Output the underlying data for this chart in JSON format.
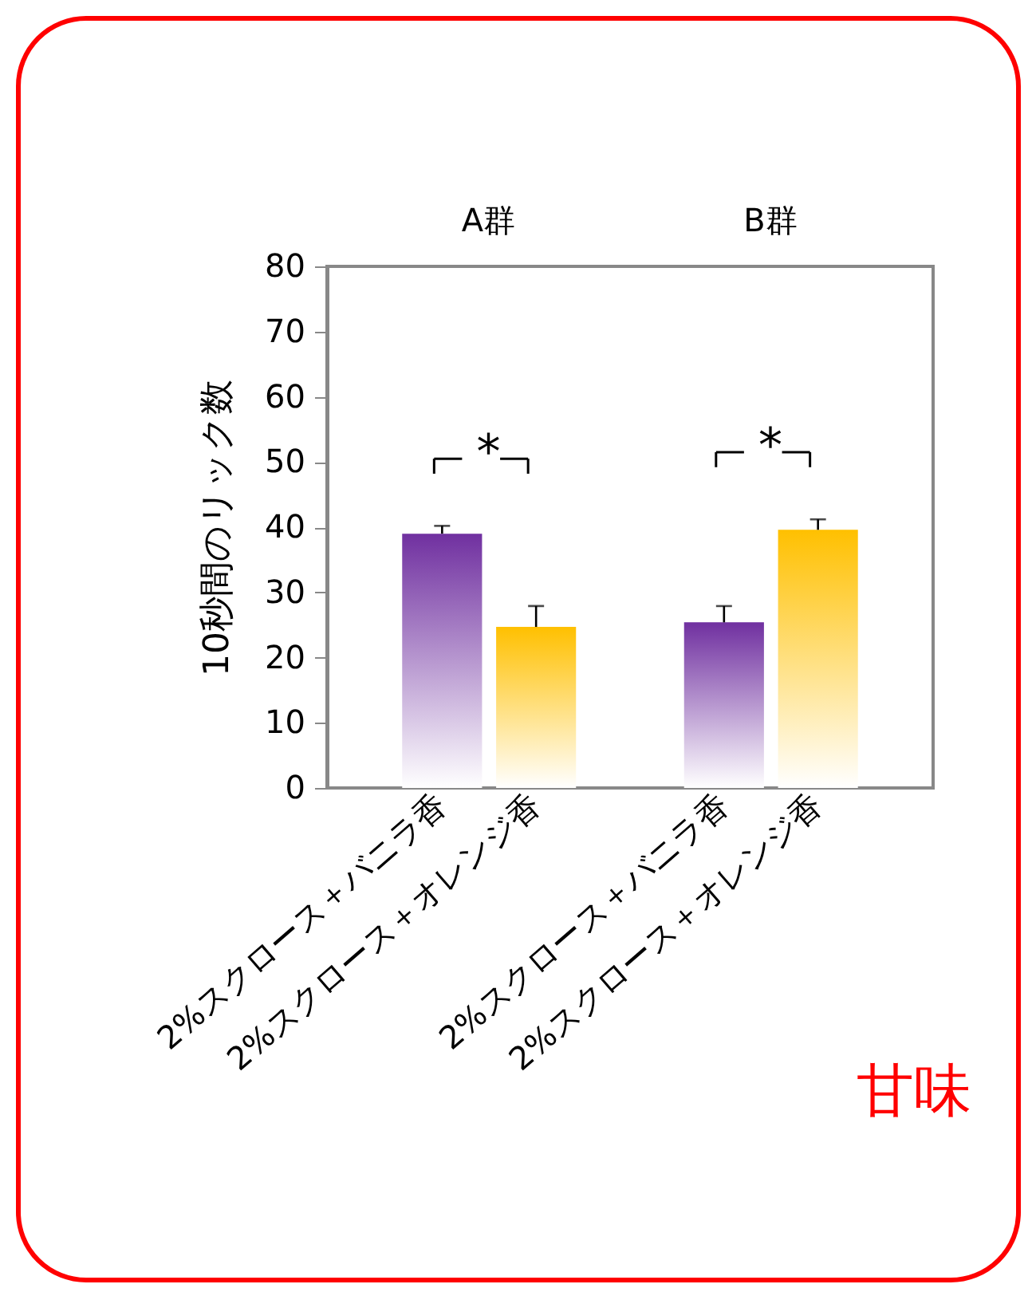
{
  "chart_data": {
    "type": "bar",
    "ylabel": "10秒間のリック数",
    "categories": [
      "2%スクロース＋バニラ香",
      "2%スクロース＋オレンジ香",
      "2%スクロース＋バニラ香",
      "2%スクロース＋オレンジ香"
    ],
    "values": [
      39,
      24.7,
      25.4,
      39.6
    ],
    "colors": [
      "#7030a0",
      "#ffc000",
      "#7030a0",
      "#ffc000"
    ],
    "errors": [
      [
        39,
        40.2
      ],
      [
        24.7,
        27.9
      ],
      [
        25.4,
        27.9
      ],
      [
        39.6,
        41.2
      ]
    ],
    "ylim": [
      0,
      80
    ],
    "yticks": [
      0,
      10,
      20,
      30,
      40,
      50,
      60,
      70,
      80
    ],
    "grid": false,
    "annotations": [
      "A群",
      "B群",
      "*",
      "*",
      "甘味"
    ]
  }
}
